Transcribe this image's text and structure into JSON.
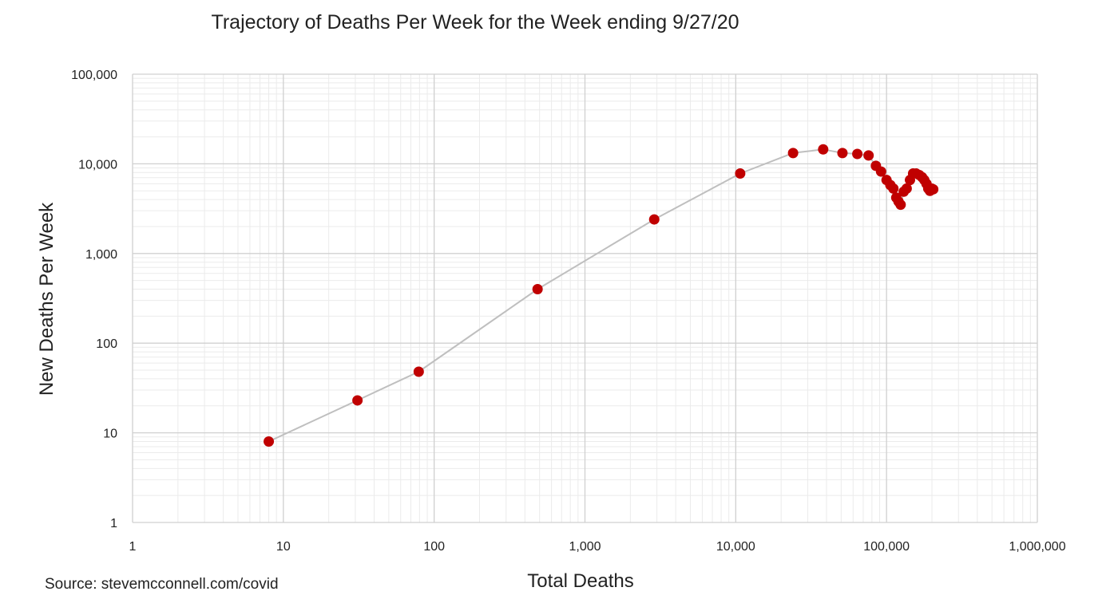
{
  "chart_data": {
    "type": "scatter",
    "title": "Trajectory of Deaths Per Week for the Week ending 9/27/20",
    "xlabel": "Total Deaths",
    "ylabel": "New Deaths Per Week",
    "x_scale": "log",
    "y_scale": "log",
    "xlim": [
      1,
      1000000
    ],
    "ylim": [
      1,
      100000
    ],
    "x_ticks": [
      "1",
      "10",
      "100",
      "1,000",
      "10,000",
      "100,000",
      "1,000,000"
    ],
    "y_ticks": [
      "1",
      "10",
      "100",
      "1,000",
      "10,000",
      "100,000"
    ],
    "grid": true,
    "minor_grid": true,
    "colors": {
      "points": "#c00000",
      "line": "#bfbfbf",
      "major_grid": "#d0d0d0",
      "minor_grid": "#ebebeb"
    },
    "series": [
      {
        "points": [
          {
            "x": 8,
            "y": 8
          },
          {
            "x": 31,
            "y": 23
          },
          {
            "x": 79,
            "y": 48
          },
          {
            "x": 485,
            "y": 400
          },
          {
            "x": 2880,
            "y": 2400
          },
          {
            "x": 10700,
            "y": 7800
          },
          {
            "x": 24000,
            "y": 13200
          },
          {
            "x": 38000,
            "y": 14500
          },
          {
            "x": 51000,
            "y": 13200
          },
          {
            "x": 64000,
            "y": 12900
          },
          {
            "x": 76000,
            "y": 12400
          },
          {
            "x": 85000,
            "y": 9500
          },
          {
            "x": 92000,
            "y": 8200
          },
          {
            "x": 100000,
            "y": 6600
          },
          {
            "x": 106000,
            "y": 5800
          },
          {
            "x": 111000,
            "y": 5300
          },
          {
            "x": 116000,
            "y": 4200
          },
          {
            "x": 120000,
            "y": 3800
          },
          {
            "x": 124000,
            "y": 3500
          },
          {
            "x": 130000,
            "y": 4900
          },
          {
            "x": 136000,
            "y": 5300
          },
          {
            "x": 143000,
            "y": 6600
          },
          {
            "x": 150000,
            "y": 7800
          },
          {
            "x": 157000,
            "y": 7800
          },
          {
            "x": 165000,
            "y": 7500
          },
          {
            "x": 172000,
            "y": 7100
          },
          {
            "x": 178000,
            "y": 6600
          },
          {
            "x": 184000,
            "y": 6000
          },
          {
            "x": 189000,
            "y": 5300
          },
          {
            "x": 194000,
            "y": 5000
          },
          {
            "x": 199000,
            "y": 5300
          },
          {
            "x": 204000,
            "y": 5200
          }
        ]
      }
    ]
  },
  "source_note": "Source: stevemcconnell.com/covid"
}
